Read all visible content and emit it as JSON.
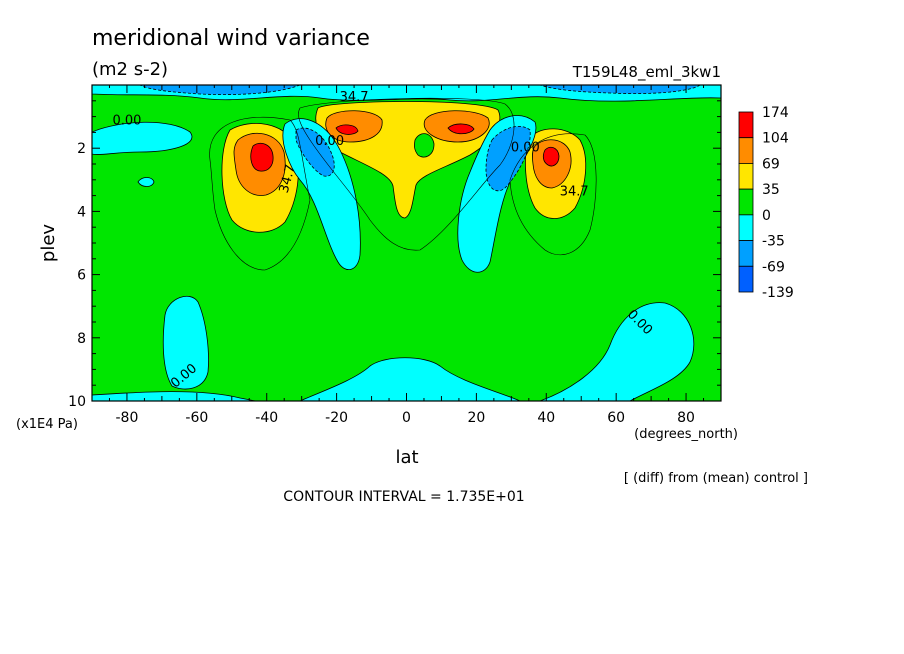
{
  "chart_data": {
    "type": "heatmap",
    "title": "meridional wind variance",
    "units": "(m2 s-2)",
    "run_label": "T159L48_eml_3kw1",
    "xlabel": "lat",
    "x_units": "(degrees_north)",
    "ylabel": "plev",
    "y_units": "(x1E4 Pa)",
    "xlim": [
      -90,
      90
    ],
    "ylim": [
      10,
      0
    ],
    "x_ticks": [
      "-80",
      "-60",
      "-40",
      "-20",
      "0",
      "20",
      "40",
      "60",
      "80"
    ],
    "x_tick_values": [
      -80,
      -60,
      -40,
      -20,
      0,
      20,
      40,
      60,
      80
    ],
    "y_ticks": [
      "2",
      "4",
      "6",
      "8",
      "10"
    ],
    "y_tick_values": [
      2,
      4,
      6,
      8,
      10
    ],
    "colorbar": {
      "labels": [
        "174",
        "104",
        "69",
        "35",
        "0",
        "-35",
        "-69",
        "-139"
      ],
      "colors": [
        "#ff0000",
        "#ff8c00",
        "#ffe600",
        "#00e600",
        "#00ffff",
        "#00a0ff",
        "#0060ff"
      ]
    },
    "contour_labels": [
      {
        "text": "34.7",
        "lat": -15,
        "plev": 0.5
      },
      {
        "text": "0.00",
        "lat": -80,
        "plev": 1.25
      },
      {
        "text": "34.7",
        "lat": -33,
        "plev": 3.0
      },
      {
        "text": "0.00",
        "lat": -22,
        "plev": 1.9
      },
      {
        "text": "0.00",
        "lat": 34,
        "plev": 2.1
      },
      {
        "text": "34.7",
        "lat": 48,
        "plev": 3.5
      },
      {
        "text": "0.00",
        "lat": 66,
        "plev": 7.6
      },
      {
        "text": "0.00",
        "lat": -63,
        "plev": 9.3
      }
    ],
    "note": "[ (diff) from (mean) control ]",
    "contour_interval_text": "CONTOUR INTERVAL = 1.735E+01"
  }
}
